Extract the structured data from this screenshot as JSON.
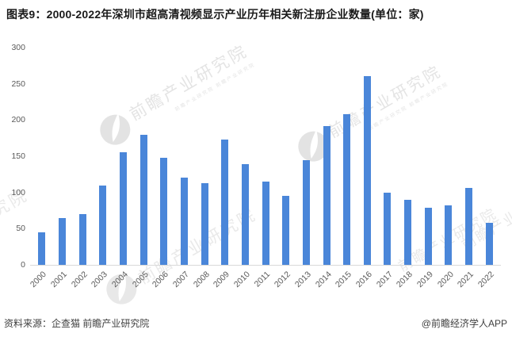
{
  "title": "图表9：2000-2022年深圳市超高清视频显示产业历年相关新注册企业数量(单位：家)",
  "footer": {
    "source": "资料来源：企查猫 前瞻产业研究院",
    "credit": "@前瞻经济学人APP"
  },
  "watermark": {
    "text": "前瞻产业研究院",
    "sub": "前瞻产业研究院 前瞻产业研究院"
  },
  "colors": {
    "bar": "#4a86d9",
    "axisText": "#595959",
    "baseline": "#d9d9d9",
    "title": "#1a1a1a",
    "footer": "#404040",
    "watermark": "#e4e4e4"
  },
  "chart_data": {
    "type": "bar",
    "title": "图表9：2000-2022年深圳市超高清视频显示产业历年相关新注册企业数量(单位：家)",
    "unit": "家",
    "categories": [
      "2000",
      "2001",
      "2002",
      "2003",
      "2004",
      "2005",
      "2006",
      "2007",
      "2008",
      "2009",
      "2010",
      "2011",
      "2012",
      "2013",
      "2014",
      "2015",
      "2016",
      "2017",
      "2018",
      "2019",
      "2020",
      "2021",
      "2022"
    ],
    "values": [
      45,
      65,
      70,
      110,
      155,
      180,
      148,
      120,
      113,
      173,
      139,
      115,
      95,
      145,
      192,
      208,
      261,
      100,
      90,
      79,
      82,
      106,
      58
    ],
    "xlabel": "",
    "ylabel": "",
    "ylim": [
      0,
      300
    ],
    "yticks": [
      0,
      50,
      100,
      150,
      200,
      250,
      300
    ],
    "grid": false,
    "legend": null
  }
}
